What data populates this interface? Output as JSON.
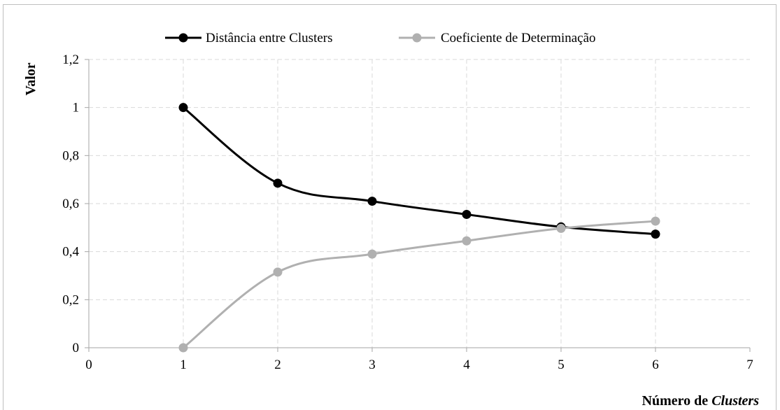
{
  "chart_data": {
    "type": "line",
    "smooth": true,
    "xlabel_prefix": "Número de ",
    "xlabel_italic": "Clusters",
    "ylabel": "Valor",
    "xlim": [
      0,
      7
    ],
    "ylim": [
      0,
      1.2
    ],
    "x_ticks": [
      0,
      1,
      2,
      3,
      4,
      5,
      6,
      7
    ],
    "x_tick_labels": [
      "0",
      "1",
      "2",
      "3",
      "4",
      "5",
      "6",
      "7"
    ],
    "y_ticks": [
      0,
      0.2,
      0.4,
      0.6,
      0.8,
      1,
      1.2
    ],
    "y_tick_labels": [
      "0",
      "0,2",
      "0,4",
      "0,6",
      "0,8",
      "1",
      "1,2"
    ],
    "grid": true,
    "legend_position": "top-center",
    "series": [
      {
        "name": "Distância entre Clusters",
        "color": "#000000",
        "x": [
          1,
          2,
          3,
          4,
          5,
          6
        ],
        "y": [
          1.0,
          0.685,
          0.61,
          0.555,
          0.503,
          0.473
        ]
      },
      {
        "name": "Coeficiente de Determinação",
        "color": "#b0b0b0",
        "x": [
          1,
          2,
          3,
          4,
          5,
          6
        ],
        "y": [
          0.0,
          0.315,
          0.39,
          0.445,
          0.497,
          0.527
        ]
      }
    ]
  }
}
